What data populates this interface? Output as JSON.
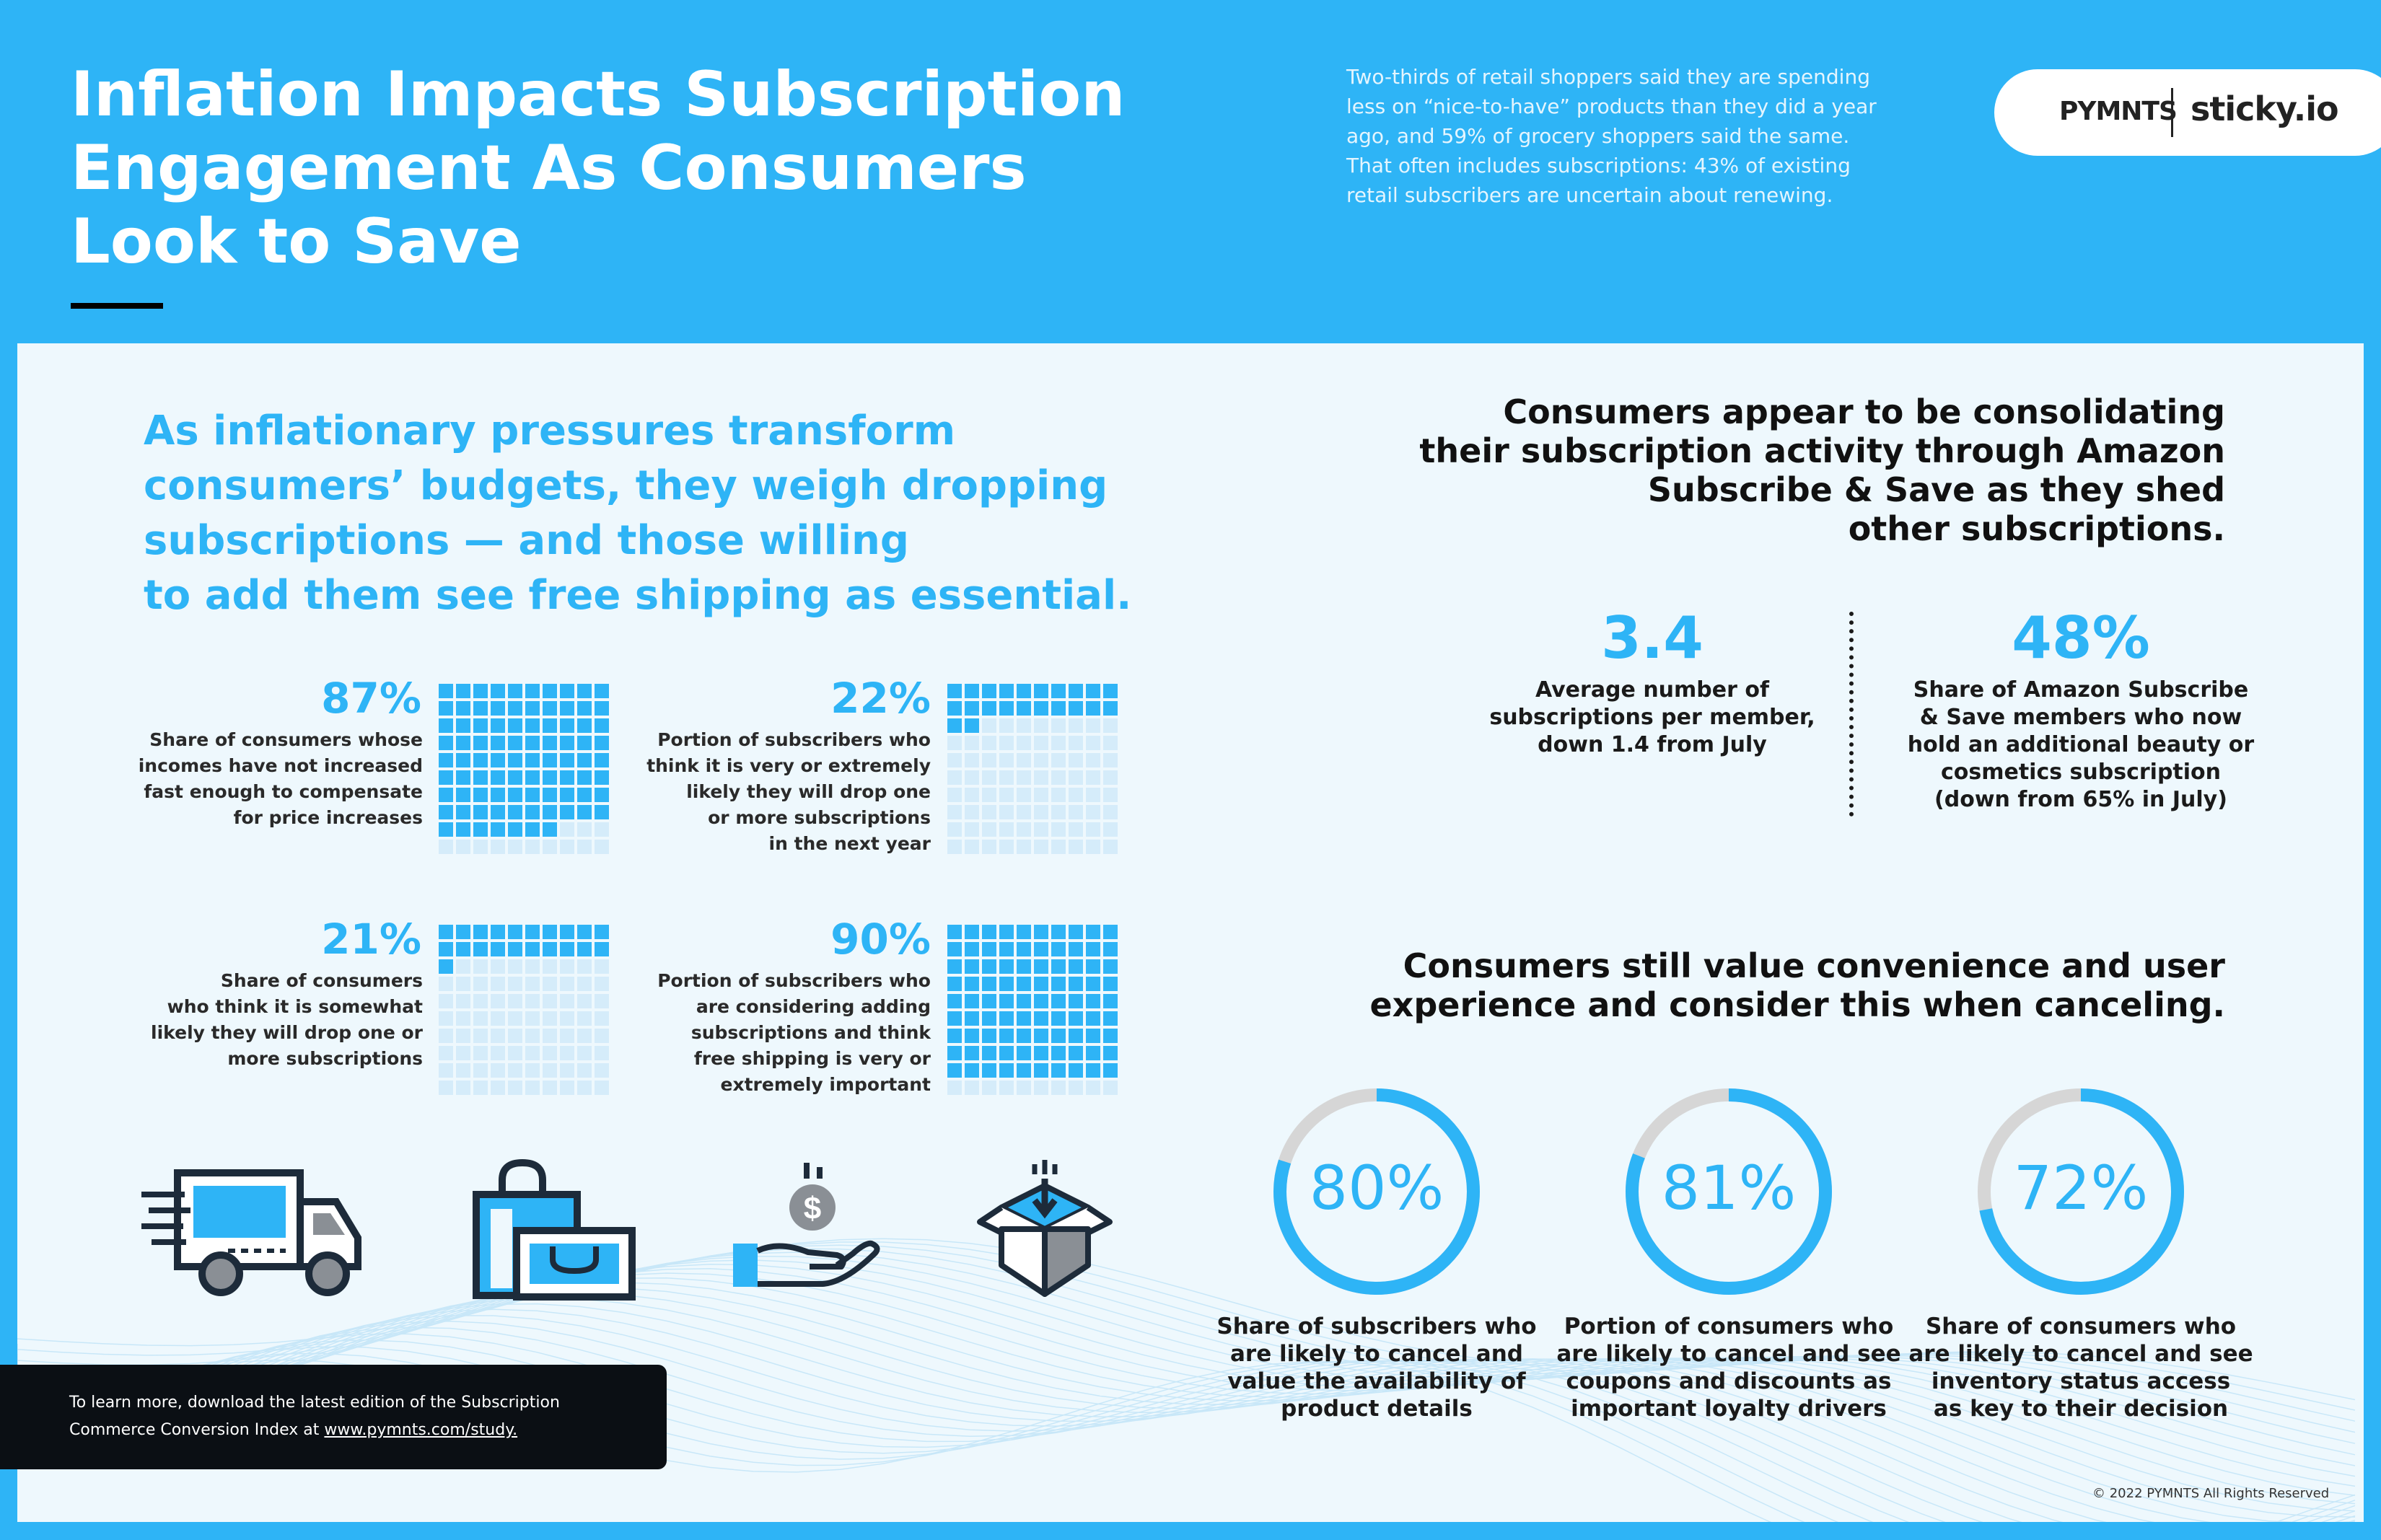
{
  "header": {
    "title_line1": "Inflation Impacts Subscription",
    "title_line2": "Engagement As Consumers",
    "title_line3": "Look to Save",
    "intro_line1": "Two-thirds of retail shoppers said they are spending",
    "intro_line2": "less on “nice-to-have” products than they did a year",
    "intro_line3": "ago, and 59% of grocery shoppers said the same.",
    "intro_line4": "That often includes subscriptions: 43% of existing",
    "intro_line5": "retail subscribers are uncertain about renewing.",
    "logo_pymnts": "PYMNTS",
    "logo_sticky": "sticky.io"
  },
  "lead": {
    "line1": "As inflationary pressures transform",
    "line2": "consumers’ budgets, they weigh dropping",
    "line3": "subscriptions — and those willing",
    "line4": "to add them see free shipping as essential."
  },
  "stats": [
    {
      "value": "87%",
      "percent": 87,
      "lines": [
        "Share of consumers whose",
        "incomes have not increased",
        "fast enough to compensate",
        "for price increases"
      ]
    },
    {
      "value": "22%",
      "percent": 22,
      "lines": [
        "Portion of subscribers who",
        "think it is very or extremely",
        "likely they will drop one",
        "or more subscriptions",
        "in the next year"
      ]
    },
    {
      "value": "21%",
      "percent": 21,
      "lines": [
        "Share of consumers",
        "who think it is somewhat",
        "likely they will drop one or",
        "more subscriptions"
      ]
    },
    {
      "value": "90%",
      "percent": 90,
      "lines": [
        "Portion of subscribers who",
        "are considering adding",
        "subscriptions and think",
        "free shipping is very or",
        "extremely important"
      ]
    }
  ],
  "icons": [
    "delivery-truck-icon",
    "shopping-bag-icon",
    "hand-coin-icon",
    "box-arrow-icon"
  ],
  "consolidation": {
    "line1": "Consumers appear to be consolidating",
    "line2": "their subscription activity through Amazon",
    "line3": "Subscribe & Save as they shed",
    "line4": "other subscriptions.",
    "metric1_value": "3.4",
    "metric1_lines": [
      "Average number of",
      "subscriptions per member,",
      "down 1.4 from July"
    ],
    "metric2_value": "48%",
    "metric2_lines": [
      "Share of Amazon Subscribe",
      "& Save members who now",
      "hold an additional beauty or",
      "cosmetics subscription",
      "(down from 65% in July)"
    ]
  },
  "convenience": {
    "line1": "Consumers still value convenience and user",
    "line2": "experience and consider this when canceling."
  },
  "donuts": [
    {
      "value": "80%",
      "percent": 80,
      "lines": [
        "Share of subscribers who",
        "are likely to cancel and",
        "value the availability of",
        "product details"
      ]
    },
    {
      "value": "81%",
      "percent": 81,
      "lines": [
        "Portion of consumers who",
        "are likely to cancel and see",
        "coupons and discounts as",
        "important loyalty drivers"
      ]
    },
    {
      "value": "72%",
      "percent": 72,
      "lines": [
        "Share of consumers who",
        "are likely to cancel and see",
        "inventory status access",
        "as key to their decision"
      ]
    }
  ],
  "cta": {
    "line1": "To learn more, download the latest edition of the Subscription",
    "line2_prefix": "Commerce Conversion Index at ",
    "link": "www.pymnts.com/study."
  },
  "copyright": "© 2022 PYMNTS All Rights Reserved",
  "colors": {
    "accent": "#2eb4f6",
    "panel": "#eef8fd",
    "light_cell": "#d5ecfa",
    "donut_rest": "#d6d6d6",
    "dark": "#1d2b3a"
  }
}
